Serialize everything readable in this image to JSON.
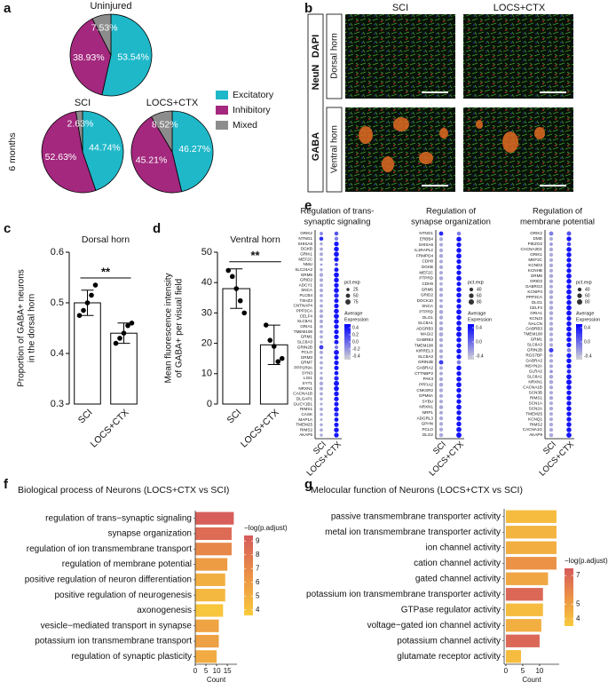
{
  "panel_labels": [
    "a",
    "b",
    "c",
    "d",
    "e",
    "f",
    "g"
  ],
  "microscopy": {
    "columns": [
      "SCI",
      "LOCS+CTX"
    ],
    "rows": [
      "Dorsal horn",
      "Ventral horn"
    ],
    "stains": [
      "GABA",
      "NeuN",
      "DAPI"
    ],
    "stain_colors": [
      "#1a9a3a",
      "#e02020",
      "#2030e0"
    ]
  },
  "chart_data": [
    {
      "type": "pie",
      "categories": [
        "Excitatory",
        "Inhibitory",
        "Mixed"
      ],
      "colors": [
        "#1fb8c9",
        "#a3287e",
        "#8c8c8c"
      ],
      "group_label": "6 months",
      "pies": [
        {
          "title": "Uninjured",
          "values": [
            53.54,
            38.93,
            7.53
          ],
          "value_labels": [
            "53.54%",
            "38.93%",
            "7.53%"
          ]
        },
        {
          "title": "SCI",
          "values": [
            44.74,
            52.63,
            2.63
          ],
          "value_labels": [
            "44.74%",
            "52.63%",
            "2.63%"
          ]
        },
        {
          "title": "LOCS+CTX",
          "values": [
            46.27,
            45.21,
            8.52
          ],
          "value_labels": [
            "46.27%",
            "45.21%",
            "8.52%"
          ]
        }
      ]
    },
    {
      "type": "bar",
      "title": "Dorsal horn",
      "ylabel": [
        "Proportion of GABA+ neurons",
        "in the dorsal horn"
      ],
      "categories": [
        "SCI",
        "LOCS+CTX"
      ],
      "values": [
        0.5,
        0.44
      ],
      "errors": [
        0.025,
        0.02
      ],
      "points": [
        [
          0.475,
          0.485,
          0.5,
          0.515,
          0.535
        ],
        [
          0.42,
          0.43,
          0.44,
          0.455,
          0.46
        ]
      ],
      "annotation": "**",
      "ylim": [
        0.3,
        0.6
      ],
      "yticks": [
        0.3,
        0.4,
        0.5,
        0.6
      ]
    },
    {
      "type": "bar",
      "title": "Ventral horn",
      "ylabel": [
        "Mean fluorescence intensity",
        "of GABA+ per visual field"
      ],
      "categories": [
        "SCI",
        "LOCS+CTX"
      ],
      "values": [
        38,
        19.5
      ],
      "errors": [
        6.5,
        6.5
      ],
      "points": [
        [
          44,
          42,
          38,
          34,
          30
        ],
        [
          26,
          21,
          19,
          14,
          15
        ]
      ],
      "annotation": "**",
      "ylim": [
        0,
        50
      ],
      "yticks": [
        0,
        10,
        20,
        30,
        40,
        50
      ]
    },
    {
      "type": "dot",
      "title": [
        "Regulation of trans-",
        "synaptic signaling"
      ],
      "genes": [
        "GRIK2",
        "NTNG1",
        "SHISA6",
        "DGKB",
        "GRIK1",
        "MEF2C",
        "NMU",
        "SLC24A2",
        "GRM5",
        "GRID2",
        "ADCY1",
        "SNCA",
        "PLCB4",
        "TSHZ3",
        "CNTNAP4",
        "PPP3CA",
        "CELF4",
        "SLC8A1",
        "GRIA1",
        "TMEM108",
        "GRM1",
        "SLC8A3",
        "GRIN2B",
        "PCLO",
        "GRM3",
        "GRM7",
        "PPP1R9A",
        "SYN3",
        "LGI1",
        "SYT1",
        "NRXN1",
        "CACNA1B",
        "DLGAP1",
        "GUCY1B1",
        "RIMS1",
        "CASK",
        "MAP1A",
        "TMEM25",
        "RIMS2",
        "AKAP5"
      ],
      "categories": [
        "SCI",
        "LOCS+CTX"
      ],
      "avg_exp": [
        [
          -0.1,
          0.3,
          -0.3,
          -0.3,
          -0.3,
          -0.3,
          -0.2,
          -0.3,
          -0.3,
          -0.3,
          -0.3,
          -0.3,
          -0.3,
          -0.3,
          -0.3,
          -0.3,
          -0.3,
          -0.3,
          -0.3,
          -0.3,
          -0.3,
          -0.3,
          0.2,
          -0.3,
          -0.3,
          -0.3,
          -0.3,
          -0.3,
          -0.3,
          -0.3,
          -0.3,
          -0.3,
          -0.3,
          -0.3,
          -0.3,
          -0.3,
          -0.3,
          -0.3,
          -0.3,
          -0.3
        ],
        [
          0.1,
          -0.1,
          0.4,
          0.4,
          0.4,
          0.4,
          0.2,
          0.4,
          0.4,
          0.4,
          0.4,
          0.4,
          0.3,
          0.4,
          0.4,
          0.4,
          0.4,
          0.4,
          0.4,
          0.4,
          0.4,
          0.4,
          -0.1,
          0.4,
          0.4,
          0.4,
          0.4,
          0.4,
          0.3,
          0.4,
          0.4,
          0.4,
          0.4,
          0.4,
          0.4,
          0.3,
          0.4,
          0.4,
          0.4,
          0.4
        ]
      ],
      "pct": [
        [
          30,
          45,
          25,
          30,
          35,
          30,
          15,
          25,
          40,
          35,
          30,
          35,
          30,
          25,
          30,
          35,
          40,
          35,
          30,
          30,
          30,
          25,
          50,
          35,
          25,
          30,
          25,
          20,
          30,
          40,
          35,
          30,
          25,
          20,
          30,
          25,
          20,
          25,
          30,
          25
        ],
        [
          45,
          40,
          60,
          65,
          70,
          60,
          30,
          55,
          70,
          65,
          60,
          70,
          60,
          55,
          60,
          65,
          70,
          65,
          60,
          60,
          60,
          55,
          40,
          70,
          55,
          60,
          55,
          50,
          60,
          75,
          70,
          65,
          60,
          55,
          65,
          55,
          50,
          55,
          65,
          60
        ]
      ],
      "size_legend": {
        "title": "pct.exp",
        "values": [
          25,
          50,
          75
        ]
      },
      "color_legend": {
        "title": [
          "Average",
          "Expression"
        ],
        "lim": [
          -0.5,
          0.5
        ],
        "ticks": [
          0.4,
          0.2,
          {
            "value": 0,
            "label": "0.0"
          },
          -0.2,
          -0.4
        ],
        "colors": [
          "#d3d3d3",
          "#0000ff"
        ]
      }
    },
    {
      "type": "dot",
      "title": [
        "Regulation of",
        "synapse organization"
      ],
      "genes": [
        "NTNG1",
        "ERBB4",
        "SHISA6",
        "IL1RAPL2",
        "FRMPD4",
        "CDH8",
        "DGKB",
        "MEF2C",
        "PTPRD",
        "CDH9",
        "GRM5",
        "GRID2",
        "DOCK10",
        "SNCA",
        "PTPRD",
        "DLG1",
        "SLC8A1",
        "ADGRB3",
        "MAGI2",
        "GABRB3",
        "TMEM108",
        "KIRREL3",
        "SLC8A3",
        "GRIN2B",
        "GABRA2",
        "CTTNBP2",
        "PAK3",
        "PPFIA2",
        "CNKSR2",
        "GPM6A",
        "SYBU",
        "NRXN1",
        "NRP1",
        "ADGRL3",
        "GPHN",
        "PCLO",
        "DLG2"
      ],
      "categories": [
        "SCI",
        "LOCS+CTX"
      ],
      "avg_exp": [
        [
          0.3,
          -0.3,
          -0.3,
          -0.3,
          -0.3,
          -0.3,
          -0.3,
          -0.3,
          -0.3,
          -0.3,
          -0.3,
          -0.3,
          -0.3,
          -0.3,
          -0.3,
          -0.3,
          -0.3,
          -0.3,
          -0.3,
          -0.3,
          -0.3,
          -0.3,
          -0.3,
          0.2,
          -0.3,
          -0.3,
          -0.3,
          -0.3,
          -0.3,
          -0.3,
          -0.3,
          -0.3,
          -0.3,
          -0.3,
          -0.3,
          -0.3,
          -0.3
        ],
        [
          -0.1,
          0.4,
          0.4,
          0.4,
          0.4,
          0.4,
          0.4,
          0.4,
          0.4,
          0.4,
          0.4,
          0.4,
          0.4,
          0.4,
          0.4,
          0.4,
          0.4,
          0.4,
          0.4,
          0.4,
          0.4,
          0.4,
          0.4,
          -0.1,
          0.4,
          0.4,
          0.4,
          0.4,
          0.4,
          0.4,
          0.4,
          0.4,
          0.4,
          0.4,
          0.4,
          0.4,
          0.4
        ]
      ],
      "pct": [
        [
          50,
          40,
          35,
          40,
          45,
          35,
          40,
          35,
          45,
          30,
          40,
          40,
          30,
          35,
          45,
          40,
          40,
          45,
          50,
          40,
          35,
          40,
          35,
          55,
          40,
          35,
          40,
          45,
          40,
          35,
          35,
          45,
          35,
          40,
          40,
          40,
          45
        ],
        [
          45,
          65,
          60,
          65,
          70,
          60,
          65,
          60,
          70,
          55,
          65,
          65,
          55,
          60,
          70,
          65,
          65,
          70,
          75,
          65,
          60,
          65,
          60,
          50,
          65,
          60,
          65,
          70,
          65,
          60,
          60,
          70,
          60,
          65,
          65,
          70,
          75
        ]
      ],
      "size_legend": {
        "title": "pct.exp",
        "values": [
          40,
          60,
          80
        ]
      },
      "color_legend": {
        "title": [
          "Average",
          "Expression"
        ],
        "lim": [
          -0.5,
          0.5
        ],
        "ticks": [
          0.4,
          {
            "value": 0,
            "label": "0.0"
          },
          -0.4
        ],
        "colors": [
          "#d3d3d3",
          "#0000ff"
        ]
      }
    },
    {
      "type": "dot",
      "title": [
        "Regulation of",
        "membrane potential"
      ],
      "genes": [
        "GRIK2",
        "DMD",
        "PIEZO2",
        "CACNA2D1",
        "GRIK1",
        "MEF2C",
        "KCND2",
        "KCNHB",
        "GRM5",
        "GRID2",
        "GABRG3",
        "KCNIP4",
        "PPP3CA",
        "DLG1",
        "CELF4",
        "GRIA1",
        "KCNJ3",
        "NALCN",
        "GABRB3",
        "TMEM108",
        "GRM1",
        "SLC8A3",
        "GRIN2B",
        "RGS7BP",
        "GABRA2",
        "INSYN2A",
        "GLRA2",
        "SLC8A1",
        "NRXN1",
        "CACNA1B",
        "SCN3B",
        "RIMS1",
        "SCN1A",
        "SCN2A",
        "TMEM25",
        "KCNQ1",
        "RIMS2",
        "CACNA1G",
        "AKAP9"
      ],
      "categories": [
        "SCI",
        "LOCS+CTX"
      ],
      "avg_exp": [
        [
          -0.1,
          -0.3,
          -0.2,
          -0.3,
          -0.3,
          -0.3,
          -0.3,
          -0.3,
          -0.3,
          -0.3,
          -0.3,
          -0.3,
          -0.3,
          -0.3,
          -0.3,
          -0.3,
          -0.3,
          -0.3,
          -0.3,
          -0.3,
          -0.3,
          -0.3,
          0.2,
          -0.3,
          -0.3,
          -0.3,
          -0.2,
          -0.3,
          -0.3,
          -0.3,
          -0.3,
          -0.3,
          -0.3,
          -0.3,
          -0.3,
          -0.3,
          -0.3,
          -0.3,
          -0.3
        ],
        [
          0.1,
          0.4,
          0.2,
          0.4,
          0.4,
          0.4,
          0.4,
          0.4,
          0.4,
          0.4,
          0.4,
          0.4,
          0.4,
          0.4,
          0.4,
          0.4,
          0.4,
          0.4,
          0.4,
          0.4,
          0.4,
          0.4,
          -0.1,
          0.4,
          0.4,
          0.4,
          0.3,
          0.4,
          0.4,
          0.4,
          0.4,
          0.4,
          0.4,
          0.4,
          0.4,
          0.4,
          0.4,
          0.4,
          0.4
        ]
      ],
      "pct": [
        [
          50,
          35,
          30,
          40,
          40,
          35,
          40,
          35,
          45,
          40,
          35,
          45,
          40,
          40,
          45,
          45,
          35,
          40,
          45,
          40,
          40,
          35,
          55,
          35,
          40,
          35,
          30,
          45,
          45,
          40,
          35,
          40,
          35,
          40,
          35,
          35,
          40,
          40,
          45
        ],
        [
          55,
          60,
          45,
          65,
          65,
          60,
          65,
          60,
          70,
          65,
          60,
          70,
          65,
          65,
          70,
          70,
          60,
          65,
          70,
          65,
          65,
          60,
          50,
          60,
          65,
          60,
          50,
          70,
          75,
          65,
          60,
          65,
          60,
          65,
          60,
          60,
          65,
          65,
          70
        ]
      ],
      "size_legend": {
        "title": "pct.exp",
        "values": [
          40,
          60,
          80
        ]
      },
      "color_legend": {
        "title": [
          "Average",
          "Expression"
        ],
        "lim": [
          -0.5,
          0.5
        ],
        "ticks": [
          0.4,
          {
            "value": 0,
            "label": "0.0"
          },
          -0.4
        ],
        "colors": [
          "#d3d3d3",
          "#0000ff"
        ]
      }
    },
    {
      "type": "hbar",
      "title": "Biological process of Neurons (LOCS+CTX vs SCI)",
      "categories": [
        "regulation of trans−synaptic signaling",
        "synapse organization",
        "regulation of ion transmembrane transport",
        "regulation of membrane potential",
        "positive regulation of neuron differentiation",
        "positive regulation of neurogenesis",
        "axonogenesis",
        "vesicle−mediated transport in synapse",
        "potassium ion transmembrane transport",
        "regulation of synaptic plasticity"
      ],
      "values": [
        18,
        17,
        17,
        15,
        14,
        14,
        13,
        11,
        11,
        10
      ],
      "color_values": [
        9.2,
        8.5,
        7,
        6,
        5,
        4.6,
        3.8,
        5.6,
        5.8,
        5.2
      ],
      "xlabel": "Count",
      "xlim": [
        0,
        19.5
      ],
      "xticks": [
        0,
        5,
        10,
        15
      ],
      "colorbar": {
        "title": "−log(p.adjust)",
        "lim": [
          3.6,
          9.4
        ],
        "ticks": [
          4,
          5,
          6,
          7,
          8,
          9
        ],
        "colors": [
          "#f8ca3c",
          "#eb9246",
          "#d65a5c"
        ]
      }
    },
    {
      "type": "hbar",
      "title": "Melocular function of Neurons (LOCS+CTX vs SCI)",
      "categories": [
        "passive transmembrane transporter activity",
        "metal ion transmembrane transporter activity",
        "ion channel activity",
        "cation channel activity",
        "gated channel activity",
        "potassium ion transmembrane transporter activity",
        "GTPase regulator activity",
        "voltage−gated ion channel activity",
        "potassium channel activity",
        "glutamate receptor activity"
      ],
      "values": [
        15,
        15,
        15,
        15,
        12.5,
        11,
        11,
        10.5,
        10,
        4.5
      ],
      "color_values": [
        4,
        4.3,
        4.5,
        5.5,
        4.8,
        7,
        4,
        4.5,
        7,
        4
      ],
      "xlabel": "Count",
      "xlim": [
        -0.5,
        15.8
      ],
      "xticks": [
        0,
        5,
        10
      ],
      "colorbar": {
        "title": "−log(p.adjust)",
        "lim": [
          3.5,
          7.5
        ],
        "ticks": [
          4,
          5,
          7
        ],
        "colors": [
          "#f8ca3c",
          "#eb9246",
          "#d65a5c"
        ]
      }
    }
  ]
}
